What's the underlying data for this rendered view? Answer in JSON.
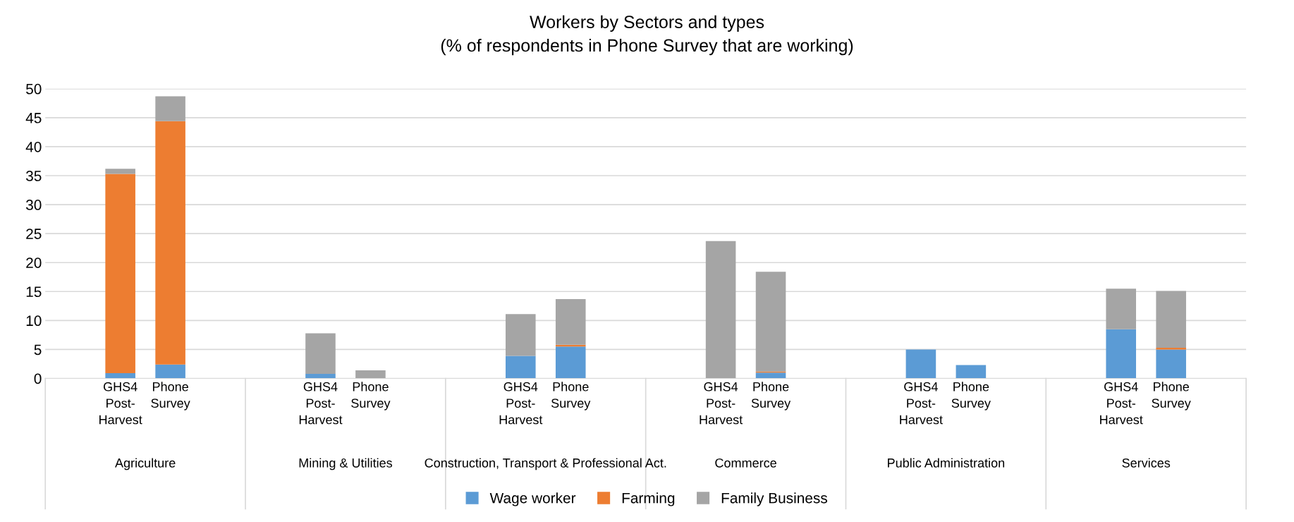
{
  "chart_data": {
    "type": "bar",
    "title": "Workers by Sectors and types",
    "subtitle": "(% of respondents in Phone Survey that are working)",
    "categories": [
      null,
      "GHS4 Post-Harvest",
      "Phone Survey",
      null,
      null,
      "GHS4 Post-Harvest",
      "Phone Survey",
      null,
      null,
      "GHS4 Post-Harvest",
      "Phone Survey",
      null,
      null,
      "GHS4 Post-Harvest",
      "Phone Survey",
      null,
      null,
      "GHS4 Post-Harvest",
      "Phone Survey",
      null,
      null,
      "GHS4 Post-Harvest",
      "Phone Survey",
      null
    ],
    "annotations": [
      "Agriculture",
      "Mining & Utilities",
      "Construction, Transport & Professional Act.",
      "Commerce",
      "Public Administration",
      "Services"
    ],
    "stacked": true,
    "series": [
      {
        "name": "Wage worker",
        "color": "#5b9bd5",
        "values": [
          null,
          0.9,
          2.4,
          null,
          null,
          0.8,
          0,
          null,
          null,
          3.9,
          5.5,
          null,
          null,
          0,
          1.0,
          null,
          null,
          5.0,
          2.3,
          null,
          null,
          8.5,
          5.0,
          null
        ]
      },
      {
        "name": "Farming",
        "color": "#ed7d31",
        "values": [
          null,
          34.4,
          42.0,
          null,
          null,
          0,
          0,
          null,
          null,
          0,
          0.3,
          null,
          null,
          0,
          0.2,
          null,
          null,
          0,
          0,
          null,
          null,
          0,
          0.3,
          null
        ]
      },
      {
        "name": "Family Business",
        "color": "#a5a5a5",
        "values": [
          null,
          0.9,
          4.3,
          null,
          null,
          7.0,
          1.4,
          null,
          null,
          7.2,
          7.9,
          null,
          null,
          23.7,
          17.2,
          null,
          null,
          0,
          0,
          null,
          null,
          7.0,
          9.8,
          null
        ]
      }
    ],
    "ylim": [
      0,
      50
    ],
    "yticks": [
      0,
      5,
      10,
      15,
      20,
      25,
      30,
      35,
      40,
      45,
      50
    ],
    "grid": "y",
    "legend": "bottom"
  }
}
